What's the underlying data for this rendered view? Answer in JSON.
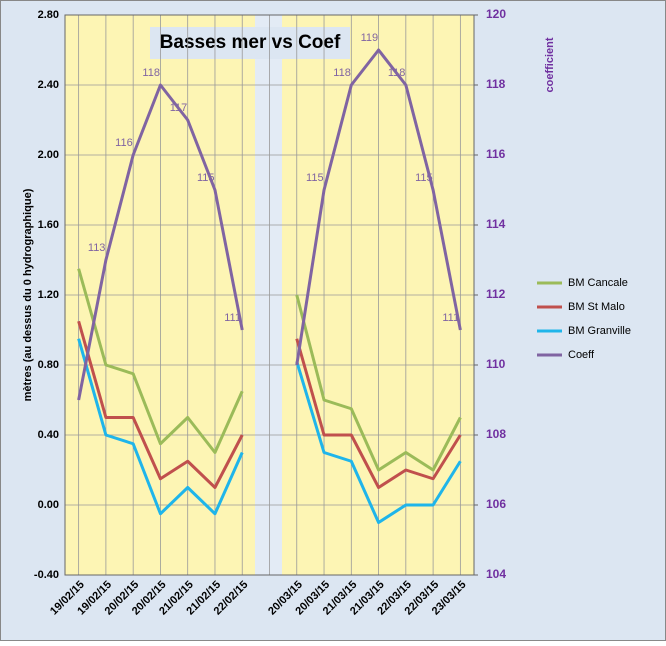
{
  "chart_data": {
    "type": "line",
    "title": "Basses mer vs Coef",
    "y_label": "mètres (au dessus du 0 hydrographique)",
    "y2_label": "coefficient",
    "categories": [
      "19/02/15",
      "19/02/15",
      "20/02/15",
      "20/02/15",
      "21/02/15",
      "21/02/15",
      "22/02/15",
      null,
      "20/03/15",
      "20/03/15",
      "21/03/15",
      "21/03/15",
      "22/03/15",
      "22/03/15",
      "23/03/15"
    ],
    "ylim": [
      -0.4,
      2.8
    ],
    "yticks": [
      {
        "value": -0.4,
        "label": "-0.40"
      },
      {
        "value": 0,
        "label": "0.00"
      },
      {
        "value": 0.4,
        "label": "0.40"
      },
      {
        "value": 0.8,
        "label": "0.80"
      },
      {
        "value": 1.2,
        "label": "1.20"
      },
      {
        "value": 1.6,
        "label": "1.60"
      },
      {
        "value": 2.0,
        "label": "2.00"
      },
      {
        "value": 2.4,
        "label": "2.40"
      },
      {
        "value": 2.8,
        "label": "2.80"
      }
    ],
    "y2lim": [
      104,
      120
    ],
    "y2ticks": [
      104,
      106,
      108,
      110,
      112,
      114,
      116,
      118,
      120
    ],
    "grid": true,
    "legend": "right",
    "series": [
      {
        "name": "BM Cancale",
        "color": "#9bbb59",
        "values": [
          1.35,
          0.8,
          0.75,
          0.35,
          0.5,
          0.3,
          0.65,
          null,
          1.2,
          0.6,
          0.55,
          0.2,
          0.3,
          0.2,
          0.5
        ]
      },
      {
        "name": "BM St Malo",
        "color": "#c0504d",
        "values": [
          1.05,
          0.5,
          0.5,
          0.15,
          0.25,
          0.1,
          0.4,
          null,
          0.95,
          0.4,
          0.4,
          0.1,
          0.2,
          0.15,
          0.4
        ]
      },
      {
        "name": "BM Granville",
        "color": "#1fb5ea",
        "values": [
          0.95,
          0.4,
          0.35,
          -0.05,
          0.1,
          -0.05,
          0.3,
          null,
          0.82,
          0.3,
          0.25,
          -0.1,
          0,
          0,
          0.25
        ]
      },
      {
        "name": "Coeff",
        "color": "#8064a2",
        "axis": "y2",
        "values": [
          109,
          113,
          116,
          118,
          117,
          115,
          111,
          null,
          110,
          115,
          118,
          119,
          118,
          115,
          111
        ],
        "value_labels": [
          null,
          "113",
          "116",
          "118",
          "117",
          "115",
          "111",
          null,
          null,
          "115",
          "118",
          "119",
          "118",
          "115",
          "111"
        ]
      }
    ]
  }
}
